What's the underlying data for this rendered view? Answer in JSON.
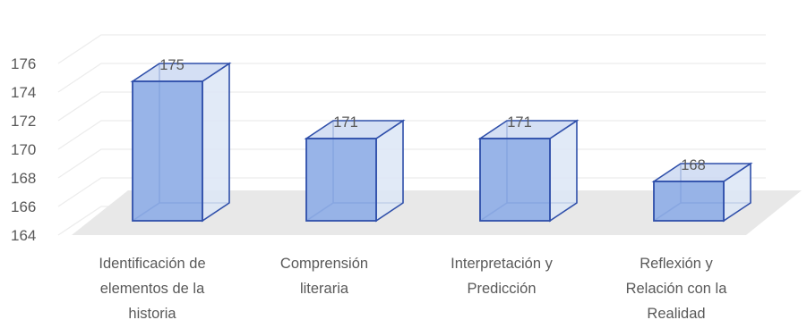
{
  "chart_data": {
    "type": "bar",
    "style": "3d-column",
    "categories": [
      [
        "Identificación de",
        "elementos de la",
        "historia"
      ],
      [
        "Comprensión",
        "literaria"
      ],
      [
        "Interpretación y",
        "Predicción"
      ],
      [
        "Reflexión y",
        "Relación con la",
        "Realidad"
      ]
    ],
    "values": [
      175,
      171,
      171,
      168
    ],
    "data_labels": [
      "175",
      "171",
      "171",
      "168"
    ],
    "ylim": [
      164,
      176
    ],
    "yticks": [
      164,
      166,
      168,
      170,
      172,
      174,
      176
    ],
    "grid": true,
    "legend": "none",
    "title": "",
    "xlabel": "",
    "ylabel": "",
    "colors": {
      "bar_front": "#8faee6",
      "bar_top": "#c9d7f1",
      "bar_side": "#dce6f6",
      "bar_edge": "#2f4faa",
      "floor": "#e8e8e8",
      "grid": "#ececec",
      "text": "#595959"
    }
  }
}
